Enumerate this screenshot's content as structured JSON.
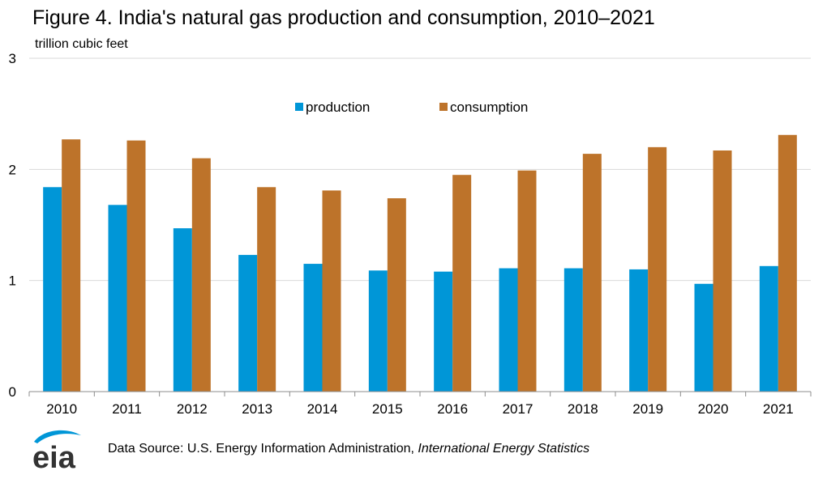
{
  "title": "Figure 4. India's natural gas production and consumption, 2010–2021",
  "units": "trillion cubic feet",
  "source": {
    "prefix": "Data Source: U.S. Energy Information Administration, ",
    "publication": "International Energy Statistics"
  },
  "logo": {
    "text": "eia",
    "accent_color": "#0096d7",
    "text_color": "#333333"
  },
  "chart_data": {
    "type": "bar",
    "categories": [
      "2010",
      "2011",
      "2012",
      "2013",
      "2014",
      "2015",
      "2016",
      "2017",
      "2018",
      "2019",
      "2020",
      "2021"
    ],
    "series": [
      {
        "name": "production",
        "color": "#0096d7",
        "values": [
          1.84,
          1.68,
          1.47,
          1.23,
          1.15,
          1.09,
          1.08,
          1.11,
          1.11,
          1.1,
          0.97,
          1.13
        ]
      },
      {
        "name": "consumption",
        "color": "#bd732a",
        "values": [
          2.27,
          2.26,
          2.1,
          1.84,
          1.81,
          1.74,
          1.95,
          1.99,
          2.14,
          2.2,
          2.17,
          2.31
        ]
      }
    ],
    "ylim": [
      0,
      3
    ],
    "yticks": [
      "0",
      "1",
      "2",
      "3"
    ],
    "ylabel": "trillion cubic feet",
    "grid": true,
    "legend_position": "top-center"
  }
}
